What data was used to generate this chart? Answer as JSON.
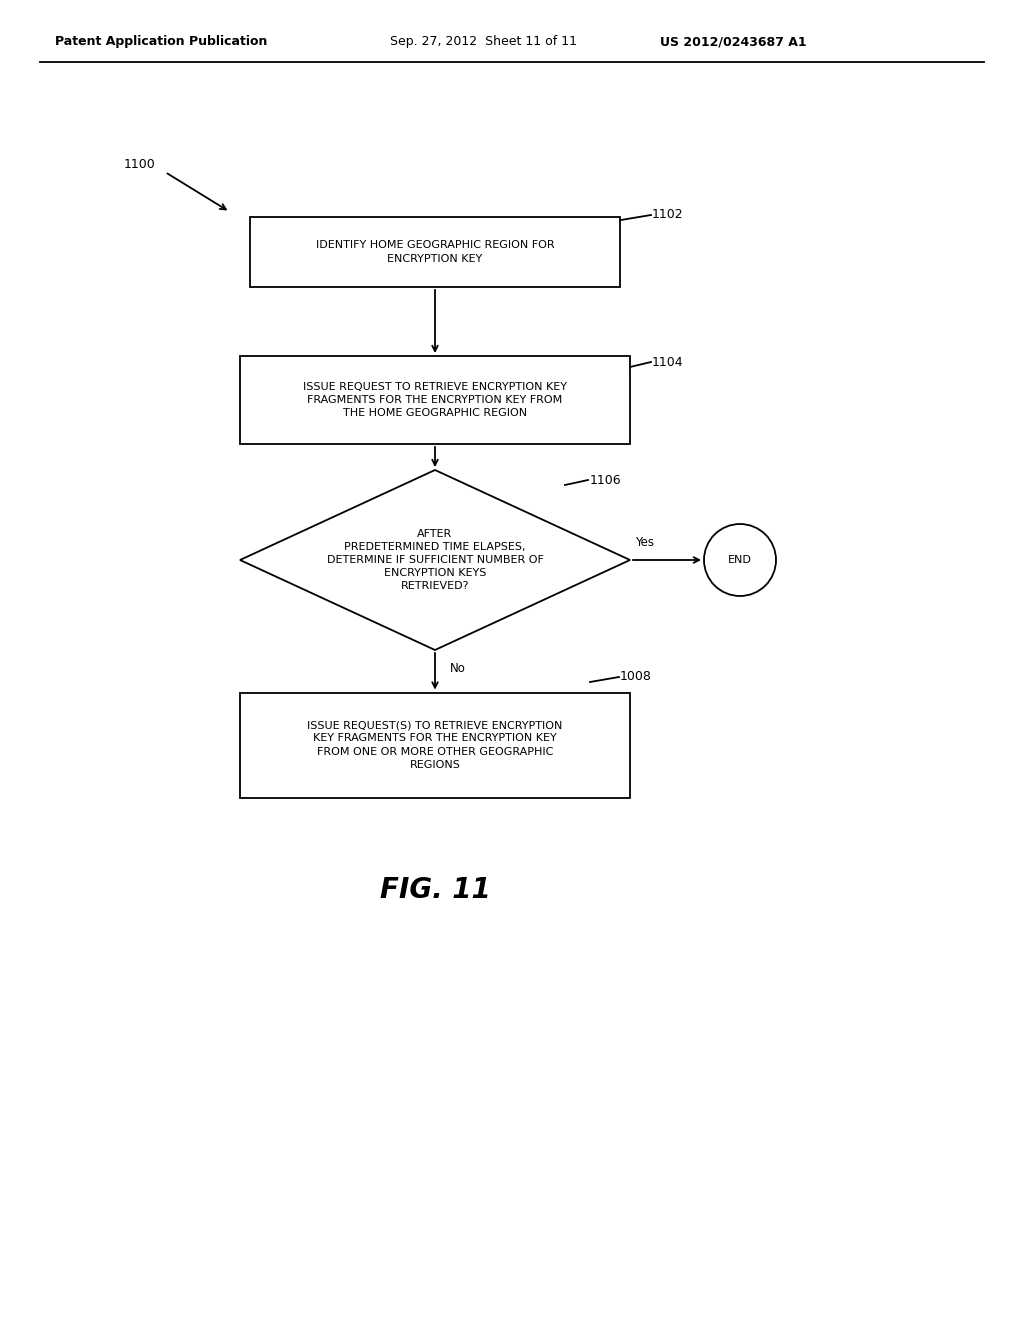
{
  "bg_color": "#ffffff",
  "header_left": "Patent Application Publication",
  "header_mid": "Sep. 27, 2012  Sheet 11 of 11",
  "header_right": "US 2012/0243687 A1",
  "figure_label": "FIG. 11",
  "label_1100": "1100",
  "label_1102": "1102",
  "label_1104": "1104",
  "label_1106": "1106",
  "label_1008": "1008",
  "box1_text": "IDENTIFY HOME GEOGRAPHIC REGION FOR\nENCRYPTION KEY",
  "box2_text": "ISSUE REQUEST TO RETRIEVE ENCRYPTION KEY\nFRAGMENTS FOR THE ENCRYPTION KEY FROM\nTHE HOME GEOGRAPHIC REGION",
  "diamond_text": "AFTER\nPREDETERMINED TIME ELAPSES,\nDETERMINE IF SUFFICIENT NUMBER OF\nENCRYPTION KEYS\nRETRIEVED?",
  "box3_text": "ISSUE REQUEST(S) TO RETRIEVE ENCRYPTION\nKEY FRAGMENTS FOR THE ENCRYPTION KEY\nFROM ONE OR MORE OTHER GEOGRAPHIC\nREGIONS",
  "end_text": "END",
  "yes_label": "Yes",
  "no_label": "No",
  "text_color": "#000000",
  "box_color": "#ffffff",
  "box_edge_color": "#000000",
  "line_color": "#000000",
  "header_fontsize": 9,
  "body_fontsize": 8,
  "label_fontsize": 9,
  "fig_label_fontsize": 20
}
